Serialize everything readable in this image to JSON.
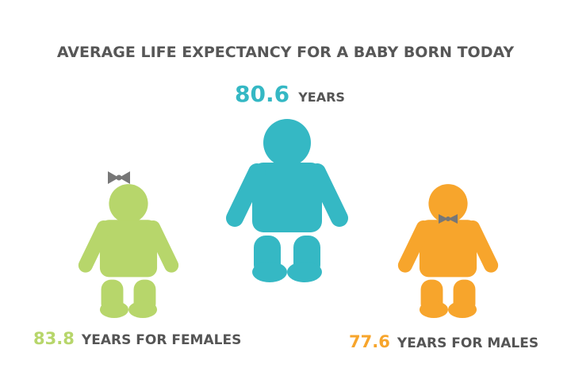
{
  "title": "AVERAGE LIFE EXPECTANCY FOR A BABY BORN TODAY",
  "figures": [
    {
      "value": 80.6,
      "label": "YEARS",
      "color": "#35b8c4"
    },
    {
      "value": 83.8,
      "label": "YEARS FOR FEMALES",
      "color": "#b7d66b"
    },
    {
      "value": 77.6,
      "label": "YEARS FOR MALES",
      "color": "#f7a52c"
    }
  ]
}
